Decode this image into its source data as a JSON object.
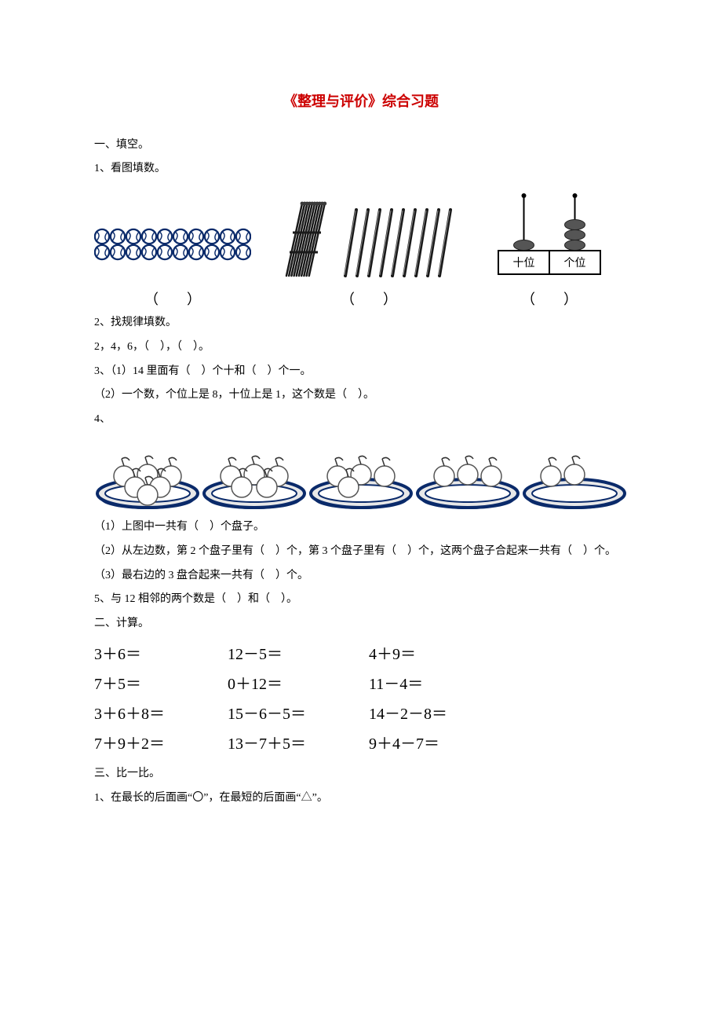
{
  "title": "《整理与评价》综合习题",
  "sec1": {
    "heading": "一、填空。",
    "q1": {
      "prompt": "1、看图填数。",
      "blank": "（　　）",
      "balls": {
        "rows": 2,
        "cols": 10,
        "stroke": "#0a2a6a",
        "fill": "#ffffff",
        "seam": "#0a2a6a"
      },
      "bundle": {
        "sticks_in_bundle": 10,
        "stroke": "#1a1a1a",
        "cap_fill": "#3a3a3a"
      },
      "loose_sticks": {
        "count": 9,
        "stroke": "#1a1a1a"
      },
      "abacus": {
        "frame": "#000000",
        "bead_fill": "#555555",
        "tens_beads": 1,
        "ones_beads": 3,
        "tens_label": "十位",
        "ones_label": "个位"
      }
    },
    "q2": {
      "text": "2、找规律填数。",
      "seq": "2，4，6，（　），（　）。"
    },
    "q3": {
      "a": "3、（1）14 里面有（　）个十和（　）个一。",
      "b": "（2）一个数，个位上是 8，十位上是 1，这个数是（　）。"
    },
    "q4": {
      "intro": "4、",
      "plates": [
        {
          "fruits": 6
        },
        {
          "fruits": 5
        },
        {
          "fruits": 4
        },
        {
          "fruits": 3
        },
        {
          "fruits": 2
        }
      ],
      "colors": {
        "plate_stroke": "#0a2a6a",
        "plate_fill": "#e8e8e8",
        "fruit_stroke": "#555555",
        "fruit_fill": "#ffffff",
        "leaf": "#333333"
      },
      "a": "（1）上图中一共有（　）个盘子。",
      "b": "（2）从左边数，第 2 个盘子里有（　）个，第 3 个盘子里有（　）个，这两个盘子合起来一共有（　）个。",
      "c": "（3）最右边的 3 盘合起来一共有（　）个。"
    },
    "q5": "5、与 12 相邻的两个数是（　）和（　）。"
  },
  "sec2": {
    "heading": "二、计算。",
    "rows": [
      [
        "3＋6＝",
        "12－5＝",
        "4＋9＝"
      ],
      [
        "7＋5＝",
        "0＋12＝",
        "11－4＝"
      ],
      [
        "3＋6＋8＝",
        "15－6－5＝",
        "14－2－8＝"
      ],
      [
        "7＋9＋2＝",
        "13－7＋5＝",
        "9＋4－7＝"
      ]
    ]
  },
  "sec3": {
    "heading": "三、比一比。",
    "q1": "1、在最长的后面画“〇”，在最短的后面画“△”。"
  }
}
